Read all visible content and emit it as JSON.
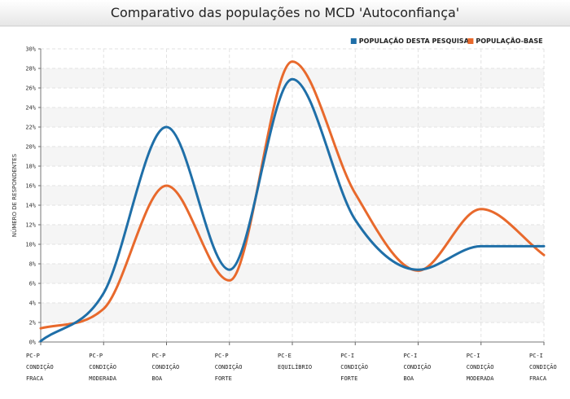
{
  "chart_data": {
    "type": "line",
    "title": "Comparativo das populações no MCD 'Autoconfiança'",
    "xlabel": "",
    "ylabel": "NÚMERO DE RESPONDENTES",
    "ylim": [
      0,
      30
    ],
    "yticks": [
      "0%",
      "2%",
      "4%",
      "6%",
      "8%",
      "10%",
      "12%",
      "14%",
      "16%",
      "18%",
      "20%",
      "22%",
      "24%",
      "26%",
      "28%",
      "30%"
    ],
    "categories": [
      [
        "PC-P",
        "CONDIÇÃO",
        "FRACA"
      ],
      [
        "PC-P",
        "CONDIÇÃO",
        "MODERADA"
      ],
      [
        "PC-P",
        "CONDIÇÃO",
        "BOA"
      ],
      [
        "PC-P",
        "CONDIÇÃO",
        "FORTE"
      ],
      [
        "PC-E",
        "EQUILÍBRIO"
      ],
      [
        "PC-I",
        "CONDIÇÃO",
        "FORTE"
      ],
      [
        "PC-I",
        "CONDIÇÃO",
        "BOA"
      ],
      [
        "PC-I",
        "CONDIÇÃO",
        "MODERADA"
      ],
      [
        "PC-I",
        "CONDIÇÃO",
        "FRACA"
      ]
    ],
    "grid": true,
    "legend": "top-right",
    "series": [
      {
        "name": "POPULAÇÃO DESTA PESQUISA",
        "color": "#1f6fa8",
        "values": [
          0.1,
          5.0,
          22.0,
          7.4,
          26.9,
          12.5,
          7.4,
          9.8,
          9.8
        ]
      },
      {
        "name": "POPULAÇÃO-BASE",
        "color": "#e8692c",
        "values": [
          1.4,
          3.4,
          16.0,
          6.3,
          28.7,
          15.2,
          7.3,
          13.6,
          8.9
        ]
      }
    ]
  }
}
